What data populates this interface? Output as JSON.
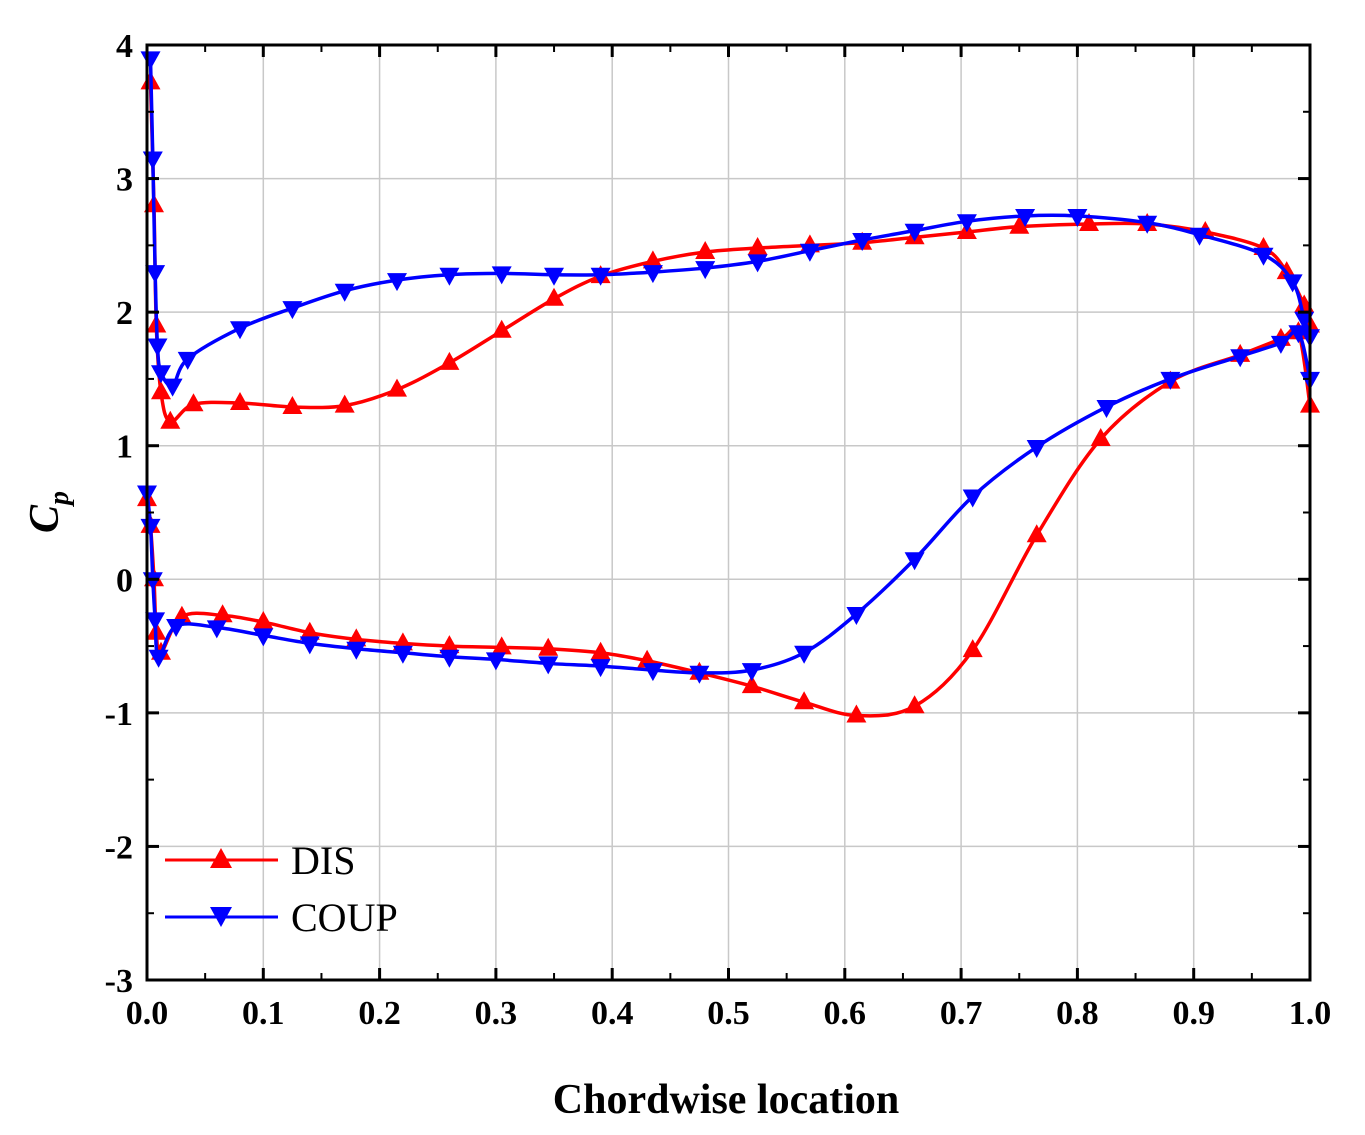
{
  "chart_data": {
    "type": "line",
    "title": "",
    "xlabel": "Chordwise location",
    "ylabel": {
      "main": "C",
      "sub": "p"
    },
    "xlim": [
      0.0,
      1.0
    ],
    "ylim": [
      -3,
      4
    ],
    "xticks": [
      "0.0",
      "0.1",
      "0.2",
      "0.3",
      "0.4",
      "0.5",
      "0.6",
      "0.7",
      "0.8",
      "0.9",
      "1.0"
    ],
    "yticks": [
      "-3",
      "-2",
      "-1",
      "0",
      "1",
      "2",
      "3",
      "4"
    ],
    "grid": true,
    "legend_position": "bottom-left",
    "colors": {
      "DIS": "#ff0000",
      "COUP": "#0000ff"
    },
    "series": [
      {
        "name": "DIS",
        "marker": "triangle-up",
        "color": "#ff0000",
        "curves": [
          [
            [
              0.003,
              3.72
            ],
            [
              0.006,
              2.8
            ],
            [
              0.008,
              1.9
            ],
            [
              0.012,
              1.4
            ],
            [
              0.02,
              1.18
            ],
            [
              0.04,
              1.31
            ],
            [
              0.08,
              1.32
            ],
            [
              0.125,
              1.29
            ],
            [
              0.17,
              1.3
            ],
            [
              0.215,
              1.42
            ],
            [
              0.26,
              1.62
            ],
            [
              0.305,
              1.86
            ],
            [
              0.35,
              2.1
            ],
            [
              0.39,
              2.27
            ],
            [
              0.435,
              2.38
            ],
            [
              0.48,
              2.45
            ],
            [
              0.525,
              2.48
            ],
            [
              0.57,
              2.5
            ],
            [
              0.615,
              2.52
            ],
            [
              0.66,
              2.56
            ],
            [
              0.705,
              2.6
            ],
            [
              0.75,
              2.64
            ],
            [
              0.81,
              2.66
            ],
            [
              0.86,
              2.66
            ],
            [
              0.91,
              2.6
            ],
            [
              0.96,
              2.48
            ],
            [
              0.98,
              2.3
            ],
            [
              0.995,
              2.05
            ],
            [
              1.0,
              1.9
            ]
          ],
          [
            [
              0.0,
              0.6
            ],
            [
              0.003,
              0.4
            ],
            [
              0.006,
              0.0
            ],
            [
              0.008,
              -0.4
            ],
            [
              0.012,
              -0.55
            ],
            [
              0.03,
              -0.28
            ],
            [
              0.065,
              -0.27
            ],
            [
              0.1,
              -0.32
            ],
            [
              0.14,
              -0.4
            ],
            [
              0.18,
              -0.45
            ],
            [
              0.22,
              -0.48
            ],
            [
              0.26,
              -0.5
            ],
            [
              0.305,
              -0.51
            ],
            [
              0.345,
              -0.52
            ],
            [
              0.39,
              -0.55
            ],
            [
              0.43,
              -0.61
            ],
            [
              0.475,
              -0.7
            ],
            [
              0.52,
              -0.8
            ],
            [
              0.565,
              -0.92
            ],
            [
              0.61,
              -1.02
            ],
            [
              0.66,
              -0.95
            ],
            [
              0.71,
              -0.53
            ],
            [
              0.765,
              0.33
            ],
            [
              0.82,
              1.05
            ],
            [
              0.88,
              1.48
            ],
            [
              0.94,
              1.68
            ],
            [
              0.975,
              1.8
            ],
            [
              0.99,
              1.85
            ],
            [
              1.0,
              1.3
            ]
          ]
        ]
      },
      {
        "name": "COUP",
        "marker": "triangle-down",
        "color": "#0000ff",
        "curves": [
          [
            [
              0.003,
              3.9
            ],
            [
              0.005,
              3.15
            ],
            [
              0.007,
              2.3
            ],
            [
              0.009,
              1.75
            ],
            [
              0.012,
              1.55
            ],
            [
              0.022,
              1.45
            ],
            [
              0.035,
              1.65
            ],
            [
              0.08,
              1.88
            ],
            [
              0.125,
              2.03
            ],
            [
              0.17,
              2.16
            ],
            [
              0.215,
              2.24
            ],
            [
              0.26,
              2.28
            ],
            [
              0.305,
              2.29
            ],
            [
              0.35,
              2.28
            ],
            [
              0.39,
              2.28
            ],
            [
              0.435,
              2.3
            ],
            [
              0.48,
              2.33
            ],
            [
              0.525,
              2.38
            ],
            [
              0.57,
              2.46
            ],
            [
              0.615,
              2.54
            ],
            [
              0.66,
              2.61
            ],
            [
              0.705,
              2.68
            ],
            [
              0.755,
              2.72
            ],
            [
              0.8,
              2.72
            ],
            [
              0.86,
              2.67
            ],
            [
              0.905,
              2.58
            ],
            [
              0.96,
              2.43
            ],
            [
              0.985,
              2.23
            ],
            [
              0.995,
              1.95
            ],
            [
              1.0,
              1.82
            ]
          ],
          [
            [
              0.0,
              0.65
            ],
            [
              0.003,
              0.4
            ],
            [
              0.005,
              0.0
            ],
            [
              0.007,
              -0.3
            ],
            [
              0.01,
              -0.58
            ],
            [
              0.025,
              -0.35
            ],
            [
              0.06,
              -0.36
            ],
            [
              0.1,
              -0.42
            ],
            [
              0.14,
              -0.48
            ],
            [
              0.18,
              -0.52
            ],
            [
              0.22,
              -0.55
            ],
            [
              0.26,
              -0.58
            ],
            [
              0.3,
              -0.6
            ],
            [
              0.345,
              -0.63
            ],
            [
              0.39,
              -0.65
            ],
            [
              0.435,
              -0.68
            ],
            [
              0.475,
              -0.7
            ],
            [
              0.52,
              -0.68
            ],
            [
              0.565,
              -0.55
            ],
            [
              0.61,
              -0.26
            ],
            [
              0.66,
              0.15
            ],
            [
              0.71,
              0.62
            ],
            [
              0.765,
              0.99
            ],
            [
              0.825,
              1.29
            ],
            [
              0.88,
              1.5
            ],
            [
              0.94,
              1.67
            ],
            [
              0.975,
              1.77
            ],
            [
              0.99,
              1.85
            ],
            [
              1.0,
              1.5
            ]
          ]
        ]
      }
    ]
  }
}
